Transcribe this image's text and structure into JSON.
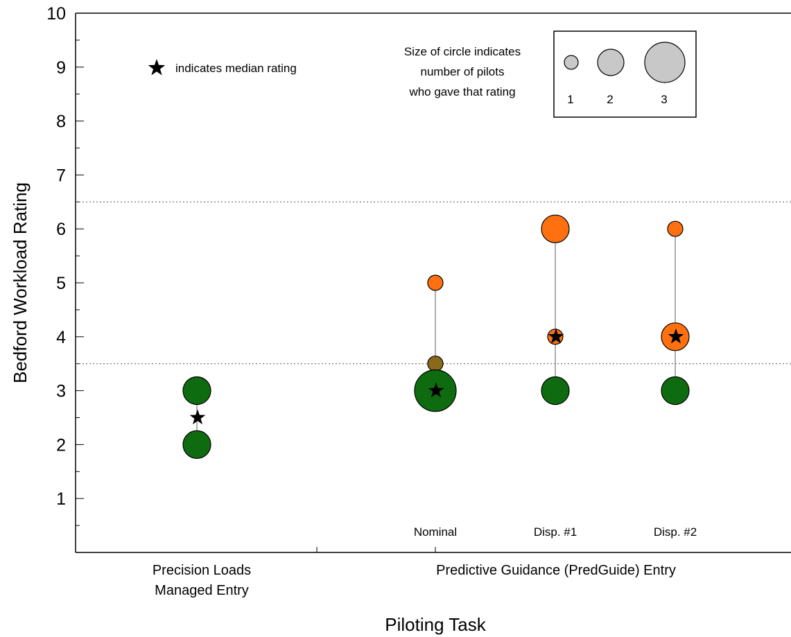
{
  "chart_data": {
    "type": "scatter",
    "ylabel": "Bedford Workload Rating",
    "xlabel": "Piloting Task",
    "ylim": [
      0,
      10
    ],
    "yticks": [
      "1",
      "2",
      "3",
      "4",
      "5",
      "6",
      "7",
      "8",
      "9",
      "10"
    ],
    "grid": false,
    "reference_lines_y": [
      3.5,
      6.5
    ],
    "category_groups": [
      {
        "label_lines": [
          "Precision Loads",
          "Managed Entry"
        ]
      },
      {
        "label_lines": [
          "Predictive Guidance (PredGuide) Entry"
        ]
      }
    ],
    "conditions": [
      {
        "label": "",
        "points": [
          {
            "y": 3,
            "count": 2,
            "color": "#0f6b0f"
          },
          {
            "y": 2,
            "count": 2,
            "color": "#0f6b0f"
          }
        ],
        "median": 2.5
      },
      {
        "label": "Nominal",
        "points": [
          {
            "y": 5,
            "count": 1,
            "color": "#ff7010"
          },
          {
            "y": 3.5,
            "count": 1,
            "color": "#8a6a1a"
          },
          {
            "y": 3,
            "count": 3,
            "color": "#0f6b0f"
          }
        ],
        "median": 3
      },
      {
        "label": "Disp. #1",
        "points": [
          {
            "y": 6,
            "count": 2,
            "color": "#ff7010"
          },
          {
            "y": 4,
            "count": 1,
            "color": "#ff7010"
          },
          {
            "y": 3,
            "count": 2,
            "color": "#0f6b0f"
          }
        ],
        "median": 4
      },
      {
        "label": "Disp. #2",
        "points": [
          {
            "y": 6,
            "count": 1,
            "color": "#ff7010"
          },
          {
            "y": 4,
            "count": 2,
            "color": "#ff7010"
          },
          {
            "y": 3,
            "count": 2,
            "color": "#0f6b0f"
          }
        ],
        "median": 4
      }
    ],
    "median_note": "indicates median rating",
    "size_legend": {
      "title_lines": [
        "Size of circle indicates",
        "number of pilots",
        "who gave that rating"
      ],
      "entries": [
        "1",
        "2",
        "3"
      ],
      "color": "#c8c8c8"
    }
  }
}
